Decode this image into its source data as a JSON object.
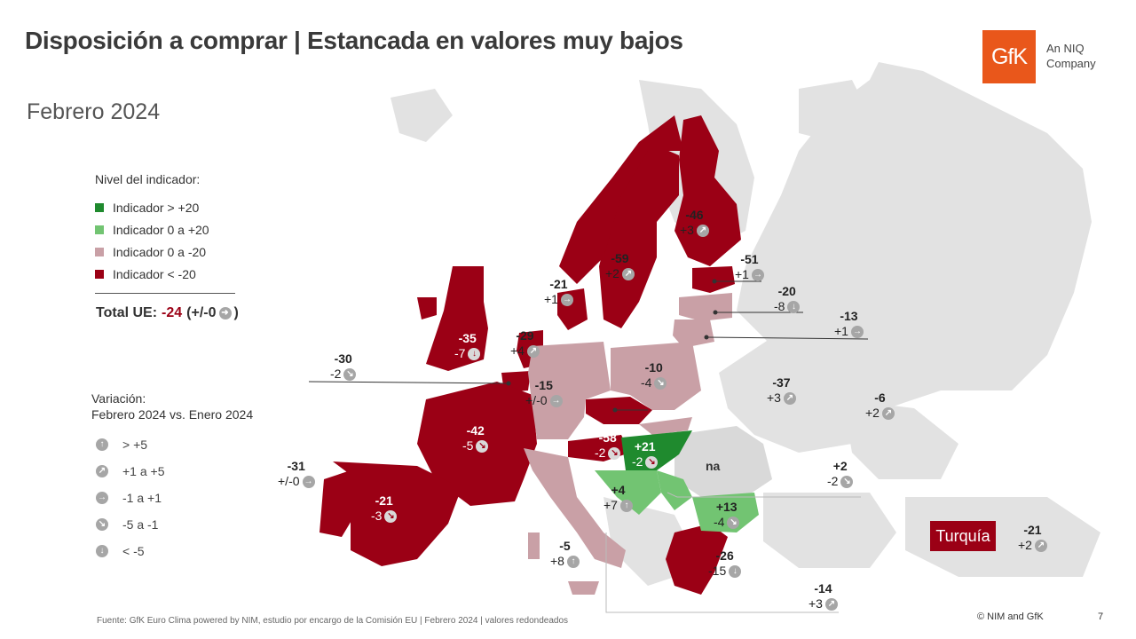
{
  "title": "Disposición a comprar | Estancada en valores muy bajos",
  "subtitle": "Febrero 2024",
  "logo": {
    "brand": "GfK",
    "tagline": "An NIQ Company"
  },
  "legend": {
    "title": "Nivel del indicador:",
    "items": [
      {
        "label": "Indicador > +20",
        "color": "#1f8a2e"
      },
      {
        "label": "Indicador 0 a +20",
        "color": "#72c472"
      },
      {
        "label": "Indicador 0 a -20",
        "color": "#c9a0a6"
      },
      {
        "label": "Indicador < -20",
        "color": "#9b0015"
      }
    ]
  },
  "total": {
    "prefix": "Total UE:",
    "value": "-24",
    "change_open": "(+/-0",
    "change_close": ")"
  },
  "variation": {
    "title_line1": "Variación:",
    "title_line2": "Febrero 2024 vs. Enero 2024",
    "items": [
      {
        "label": "> +5",
        "icon": "arrow-up-icon"
      },
      {
        "label": "+1 a +5",
        "icon": "arrow-up-right-icon"
      },
      {
        "label": "-1 a +1",
        "icon": "arrow-right-icon"
      },
      {
        "label": "-5 a -1",
        "icon": "arrow-down-right-icon"
      },
      {
        "label": "< -5",
        "icon": "arrow-down-icon"
      }
    ]
  },
  "countries": [
    {
      "id": "finland",
      "value": "-46",
      "change": "+3"
    },
    {
      "id": "sweden",
      "value": "-59",
      "change": "+2"
    },
    {
      "id": "estonia",
      "value": "-51",
      "change": "+1"
    },
    {
      "id": "latvia",
      "value": "-20",
      "change": "-8"
    },
    {
      "id": "lithuania",
      "value": "-13",
      "change": "+1"
    },
    {
      "id": "denmark",
      "value": "-21",
      "change": "+1"
    },
    {
      "id": "uk",
      "value": "-35",
      "change": "-7"
    },
    {
      "id": "netherlands",
      "value": "-29",
      "change": "+4"
    },
    {
      "id": "belgium",
      "value": "-30",
      "change": "-2"
    },
    {
      "id": "germany",
      "value": "-15",
      "change": "+/-0"
    },
    {
      "id": "poland",
      "value": "-10",
      "change": "-4"
    },
    {
      "id": "czechia",
      "value": "-37",
      "change": "+3"
    },
    {
      "id": "slovakia",
      "value": "-6",
      "change": "+2"
    },
    {
      "id": "france",
      "value": "-42",
      "change": "-5"
    },
    {
      "id": "austria",
      "value": "-58",
      "change": "-2"
    },
    {
      "id": "hungary",
      "value": "+21",
      "change": "-2"
    },
    {
      "id": "portugal",
      "value": "-31",
      "change": "+/-0"
    },
    {
      "id": "spain",
      "value": "-21",
      "change": "-3"
    },
    {
      "id": "croatia",
      "value": "+4",
      "change": "+7"
    },
    {
      "id": "bulgaria",
      "value": "+13",
      "change": "-4"
    },
    {
      "id": "romania_side",
      "value": "+2",
      "change": "-2"
    },
    {
      "id": "italy",
      "value": "-5",
      "change": "+8"
    },
    {
      "id": "greece",
      "value": "-26",
      "change": "-15"
    },
    {
      "id": "cyprus",
      "value": "-14",
      "change": "+3"
    },
    {
      "id": "turkey",
      "value": "-21",
      "change": "+2"
    }
  ],
  "romania_na": "na",
  "turkey_label": "Turquía",
  "source": "Fuente: GfK Euro Clima powered by NIM, estudio por encargo de la Comisión EU | Febrero 2024 | valores redondeados",
  "copyright": "© NIM and GfK",
  "page_number": "7"
}
